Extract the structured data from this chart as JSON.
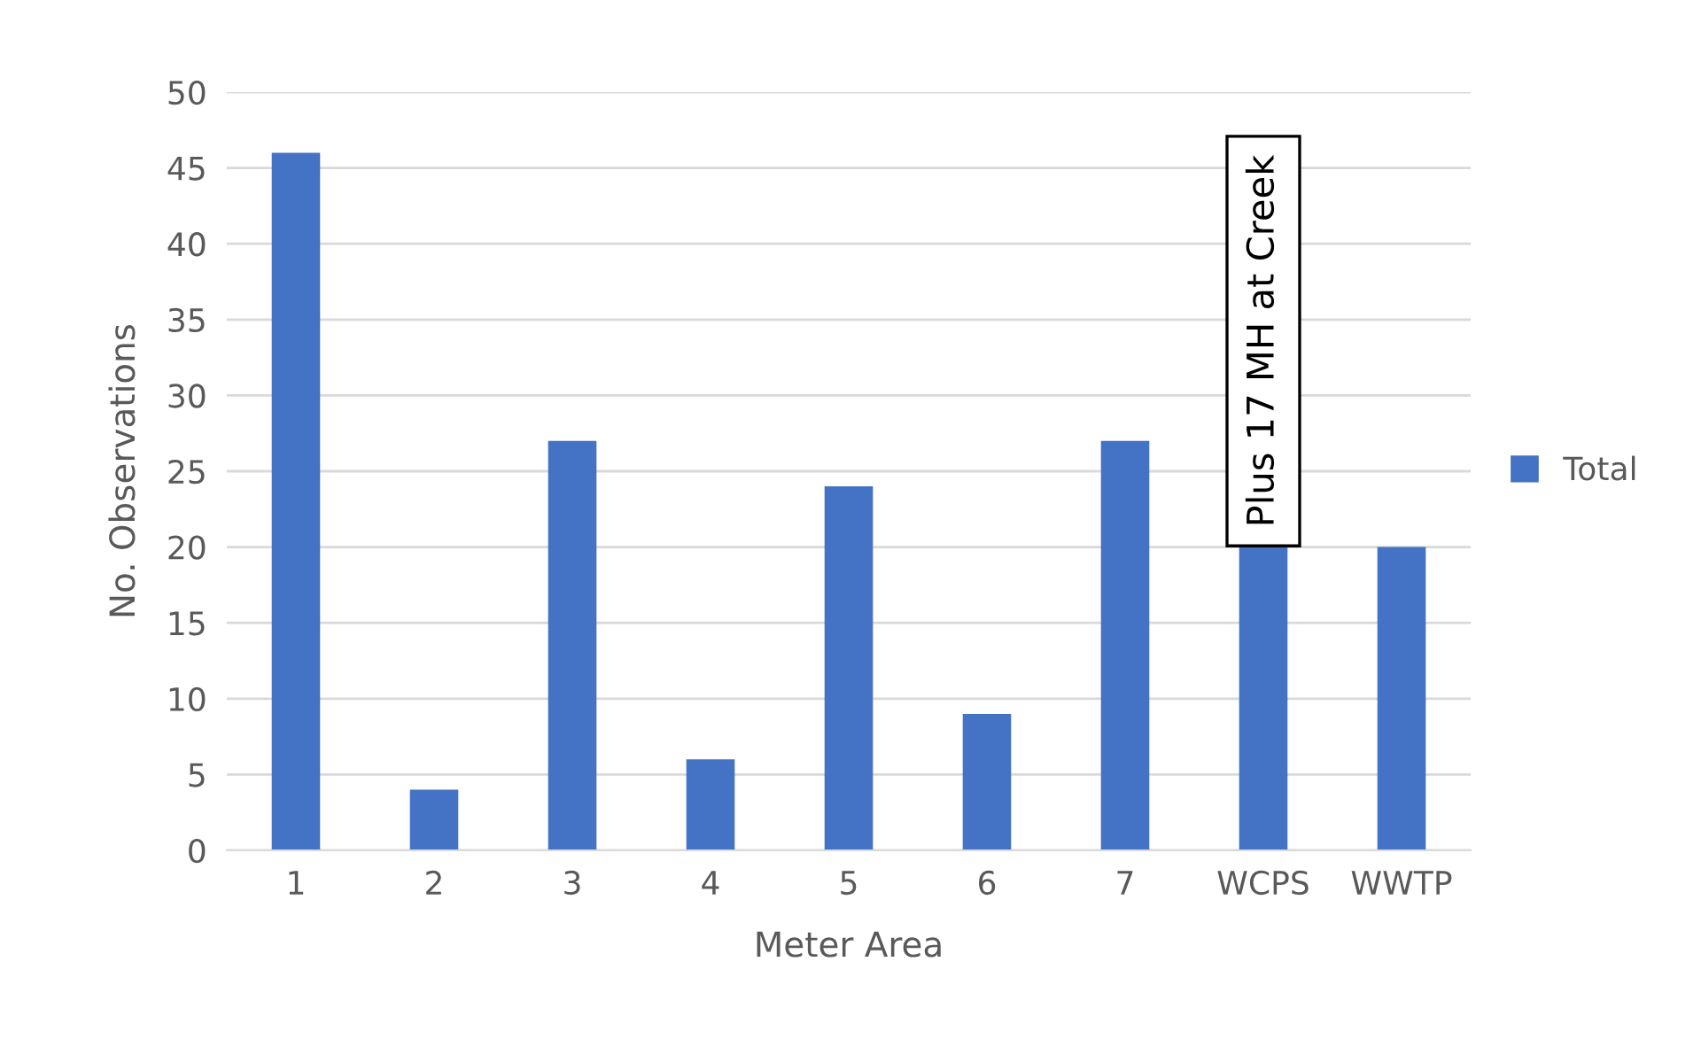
{
  "chart_data": {
    "type": "bar",
    "xlabel": "Meter Area",
    "ylabel": "No. Observations",
    "categories": [
      "1",
      "2",
      "3",
      "4",
      "5",
      "6",
      "7",
      "WCPS",
      "WWTP"
    ],
    "series": [
      {
        "name": "Total",
        "color": "#4472c4",
        "values": [
          46,
          4,
          27,
          6,
          24,
          9,
          27,
          20,
          20
        ]
      }
    ],
    "ylim": [
      0,
      50
    ],
    "yticks": [
      0,
      5,
      10,
      15,
      20,
      25,
      30,
      35,
      40,
      45,
      50
    ],
    "grid": "y",
    "legend": "right",
    "annotations": [
      {
        "text": "Plus 17 MH at Creek",
        "x": "WCPS",
        "y": 20
      }
    ]
  }
}
